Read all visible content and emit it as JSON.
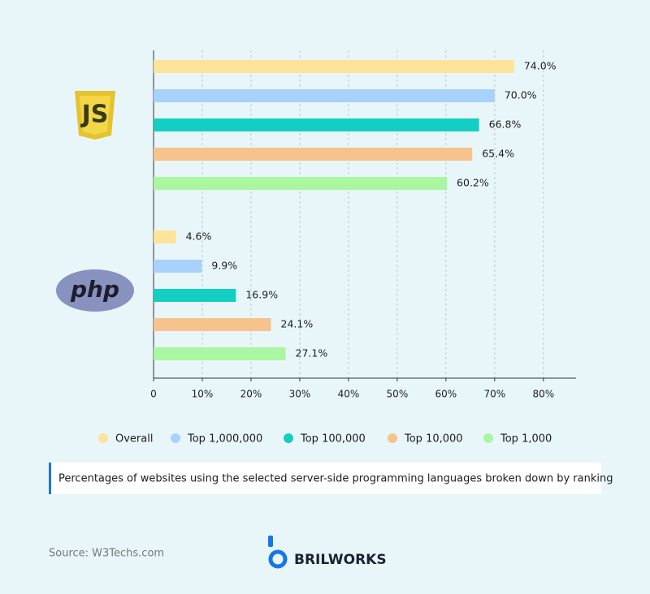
{
  "chart_data": {
    "type": "bar",
    "orientation": "horizontal",
    "categories": [
      "JS",
      "php"
    ],
    "series": [
      {
        "name": "Overall",
        "color": "#fde49a",
        "values": [
          74,
          4.6
        ],
        "value_labels": [
          "74.0%",
          "4.6%"
        ]
      },
      {
        "name": "Top 1,000,000",
        "color": "#a8d1fb",
        "values": [
          70,
          9.9
        ],
        "value_labels": [
          "70.0%",
          "9.9%"
        ]
      },
      {
        "name": "Top 100,000",
        "color": "#13cfc3",
        "values": [
          66.8,
          16.9
        ],
        "value_labels": [
          "66.8%",
          "16.9%"
        ]
      },
      {
        "name": "Top 10,000",
        "color": "#f7c38d",
        "values": [
          65.4,
          24.1
        ],
        "value_labels": [
          "65.4%",
          "24.1%"
        ]
      },
      {
        "name": "Top 1,000",
        "color": "#a9f7a0",
        "values": [
          60.2,
          27.1
        ],
        "value_labels": [
          "60.2%",
          "27.1%"
        ]
      }
    ],
    "xlim": [
      0,
      86.7
    ],
    "xticks": [
      0,
      {
        "value": 10,
        "label": "10%"
      },
      {
        "value": 20,
        "label": "20%"
      },
      {
        "value": 30,
        "label": "30%"
      },
      {
        "value": 40,
        "label": "40%"
      },
      {
        "value": 50,
        "label": "50%"
      },
      {
        "value": 60,
        "label": "60%"
      },
      {
        "value": 70,
        "label": "70%"
      },
      {
        "value": 80,
        "label": "80%"
      }
    ],
    "grid": true,
    "legend": "bottom"
  },
  "caption": "Percentages of websites using the selected server-side programming languages broken down by ranking",
  "source": "Source: W3Techs.com",
  "brand": "BRILWORKS"
}
